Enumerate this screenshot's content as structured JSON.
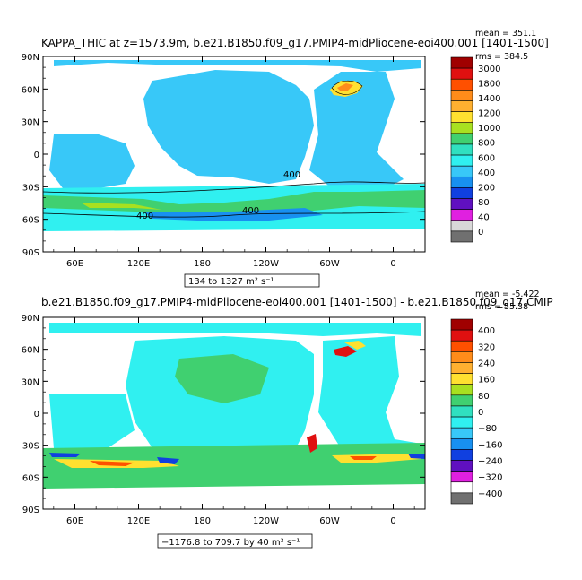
{
  "chart_data": [
    {
      "type": "heatmap",
      "title": "KAPPA_THIC at z=1573.9m, b.e21.B1850.f09_g17.PMIP4-midPliocene-eoi400.001 [1401-1500]",
      "stats": {
        "mean": "mean = 351.1",
        "rms": "rms = 384.5"
      },
      "range_label": "134 to 1327 m² s⁻¹",
      "xticks": [
        "60E",
        "120E",
        "180",
        "120W",
        "60W",
        "0"
      ],
      "yticks": [
        "90N",
        "60N",
        "30N",
        "0",
        "30S",
        "60S",
        "90S"
      ],
      "contour_labels": [
        "400",
        "400",
        "400"
      ],
      "colorbar": {
        "labels": [
          "3000",
          "1800",
          "1400",
          "1200",
          "1000",
          "800",
          "600",
          "400",
          "200",
          "80",
          "40",
          "0"
        ],
        "colors": [
          "#a00000",
          "#e01010",
          "#ff5000",
          "#ff8c1a",
          "#ffb030",
          "#ffe030",
          "#a8e020",
          "#40d070",
          "#30e0c0",
          "#30f0f0",
          "#38c8f8",
          "#1890f0",
          "#1040e0",
          "#6010c0",
          "#e020e0",
          "#d8d8d8",
          "#707070"
        ]
      }
    },
    {
      "type": "heatmap",
      "title": "b.e21.B1850.f09_g17.PMIP4-midPliocene-eoi400.001 [1401-1500] - b.e21.B1850.f09_g17.CMIP",
      "stats": {
        "mean": "mean = -5.422",
        "rms": "rms = 55.38"
      },
      "range_label": "−1176.8 to 709.7 by 40 m² s⁻¹",
      "xticks": [
        "60E",
        "120E",
        "180",
        "120W",
        "60W",
        "0"
      ],
      "yticks": [
        "90N",
        "60N",
        "30N",
        "0",
        "30S",
        "60S",
        "90S"
      ],
      "colorbar": {
        "labels": [
          "400",
          "320",
          "240",
          "160",
          "80",
          "0",
          "−80",
          "−160",
          "−240",
          "−320",
          "−400"
        ],
        "colors": [
          "#a00000",
          "#e01010",
          "#ff5000",
          "#ff8c1a",
          "#ffb030",
          "#ffe030",
          "#a8e020",
          "#40d070",
          "#30e0c0",
          "#30f0f0",
          "#38c8f8",
          "#1890f0",
          "#1040e0",
          "#6010c0",
          "#e020e0",
          "#ffffff",
          "#707070"
        ]
      }
    }
  ]
}
